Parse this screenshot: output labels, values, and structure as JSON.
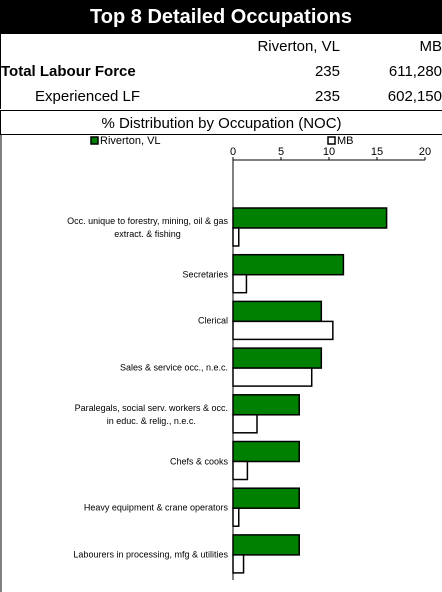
{
  "header": {
    "title": "Top 8 Detailed Occupations"
  },
  "table": {
    "columns": [
      "Riverton, VL",
      "MB"
    ],
    "rows": [
      [
        "Total Labour Force",
        "235",
        "611,280"
      ],
      [
        "Experienced LF",
        "235",
        "602,150"
      ]
    ]
  },
  "chart_data": {
    "type": "bar",
    "orientation": "horizontal",
    "title": "% Distribution by Occupation (NOC)",
    "categories": [
      "Occ. unique to forestry, mining, oil & gas\nextract. & fishing",
      "Secretaries",
      "Clerical",
      "Sales & service occ., n.e.c.",
      "Paralegals, social serv. workers & occ.\nin educ. & relig., n.e.c.",
      "Chefs & cooks",
      "Heavy equipment & crane operators",
      "Labourers in processing, mfg & utilities"
    ],
    "series": [
      {
        "name": "Riverton, VL",
        "color": "#008000",
        "values": [
          16.0,
          11.5,
          9.2,
          9.2,
          6.9,
          6.9,
          6.9,
          6.9
        ]
      },
      {
        "name": "MB",
        "color": "#ffffff",
        "values": [
          0.6,
          1.4,
          10.4,
          8.2,
          2.5,
          1.5,
          0.6,
          1.1
        ]
      }
    ],
    "xlim": [
      0,
      20
    ],
    "xticks": [
      0,
      5,
      10,
      15,
      20
    ],
    "legend": "top"
  }
}
